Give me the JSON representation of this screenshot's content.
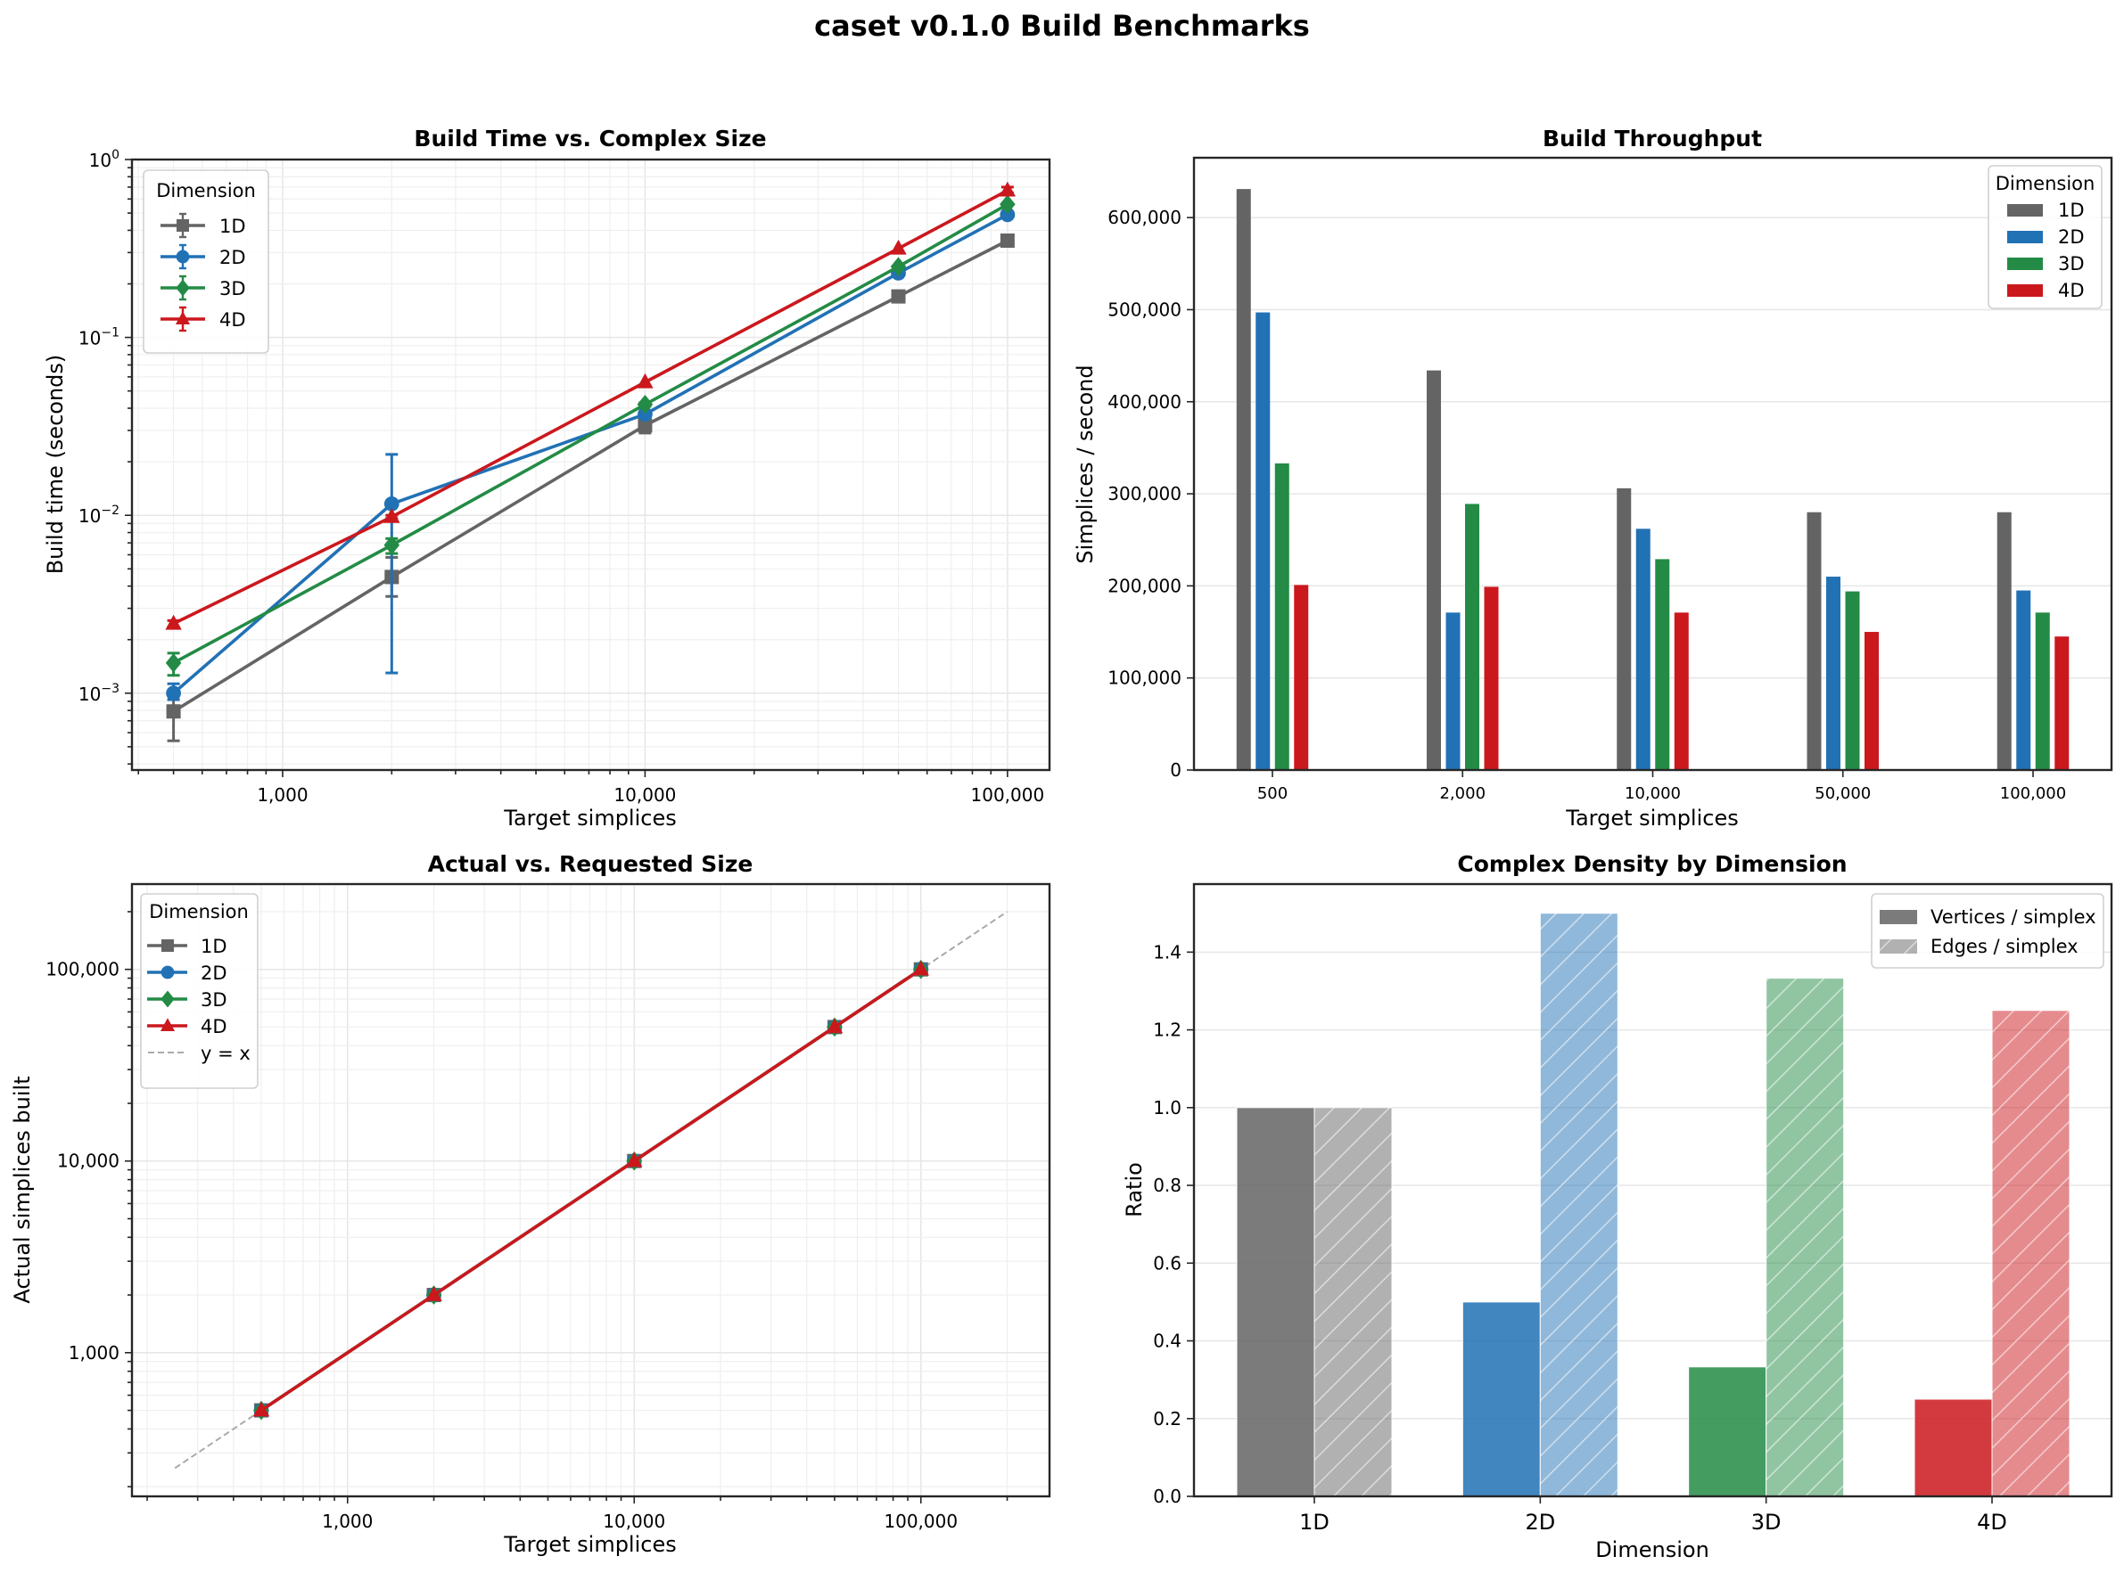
{
  "figure": {
    "title": "caset v0.1.0 Build Benchmarks",
    "colors": {
      "1D": "#646464",
      "2D": "#2171b5",
      "3D": "#238b45",
      "4D": "#cb181d"
    }
  },
  "chart_data": [
    {
      "id": "build-time",
      "type": "line",
      "title": "Build Time vs. Complex Size",
      "xlabel": "Target simplices",
      "ylabel": "Build time (seconds)",
      "xscale": "log",
      "yscale": "log",
      "xlim": [
        384,
        130600
      ],
      "ylim": [
        0.00037,
        1.0
      ],
      "xticks": [
        {
          "value": 1000,
          "label": "1,000"
        },
        {
          "value": 10000,
          "label": "10,000"
        },
        {
          "value": 100000,
          "label": "100,000"
        }
      ],
      "yticks": [
        {
          "value": 0.001,
          "base": "10",
          "exp": "−3"
        },
        {
          "value": 0.01,
          "base": "10",
          "exp": "−2"
        },
        {
          "value": 0.1,
          "base": "10",
          "exp": "−1"
        },
        {
          "value": 1,
          "base": "10",
          "exp": "0"
        }
      ],
      "grid": true,
      "legend": {
        "title": "Dimension",
        "placement": "upper-left"
      },
      "x": [
        500,
        2000,
        10000,
        50000,
        100000
      ],
      "series": [
        {
          "name": "1D",
          "marker": "square",
          "values": [
            0.00079,
            0.0045,
            0.032,
            0.17,
            0.35
          ],
          "err_low": [
            0.00054,
            0.0035,
            0.029,
            0.17,
            0.35
          ],
          "err_high": [
            0.001,
            0.0058,
            0.035,
            0.17,
            0.35
          ]
        },
        {
          "name": "2D",
          "marker": "circle",
          "values": [
            0.001,
            0.0116,
            0.037,
            0.23,
            0.49
          ],
          "err_low": [
            0.00092,
            0.0013,
            0.036,
            0.23,
            0.49
          ],
          "err_high": [
            0.00113,
            0.022,
            0.038,
            0.23,
            0.49
          ]
        },
        {
          "name": "3D",
          "marker": "diamond",
          "values": [
            0.00148,
            0.0068,
            0.042,
            0.25,
            0.56
          ],
          "err_low": [
            0.00126,
            0.0061,
            0.041,
            0.25,
            0.56
          ],
          "err_high": [
            0.00168,
            0.0074,
            0.043,
            0.25,
            0.56
          ]
        },
        {
          "name": "4D",
          "marker": "triangle",
          "values": [
            0.00246,
            0.0098,
            0.056,
            0.316,
            0.67
          ],
          "err_low": [
            0.00236,
            0.0096,
            0.056,
            0.316,
            0.65
          ],
          "err_high": [
            0.00256,
            0.01,
            0.056,
            0.316,
            0.7
          ]
        }
      ]
    },
    {
      "id": "throughput",
      "type": "bar",
      "title": "Build Throughput",
      "xlabel": "Target simplices",
      "ylabel": "Simplices / second",
      "categories": [
        "500",
        "2,000",
        "10,000",
        "50,000",
        "100,000"
      ],
      "ylim": [
        0,
        665000
      ],
      "yticks": [
        {
          "value": 0,
          "label": "0"
        },
        {
          "value": 100000,
          "label": "100,000"
        },
        {
          "value": 200000,
          "label": "200,000"
        },
        {
          "value": 300000,
          "label": "300,000"
        },
        {
          "value": 400000,
          "label": "400,000"
        },
        {
          "value": 500000,
          "label": "500,000"
        },
        {
          "value": 600000,
          "label": "600,000"
        }
      ],
      "grid": "y",
      "legend": {
        "title": "Dimension",
        "placement": "upper-right"
      },
      "series": [
        {
          "name": "1D",
          "values": [
            631000,
            434000,
            306000,
            280000,
            280000
          ]
        },
        {
          "name": "2D",
          "values": [
            497000,
            171000,
            262000,
            210000,
            195000
          ]
        },
        {
          "name": "3D",
          "values": [
            333000,
            289000,
            229000,
            194000,
            171000
          ]
        },
        {
          "name": "4D",
          "values": [
            201000,
            199000,
            171000,
            150000,
            145000
          ]
        }
      ]
    },
    {
      "id": "actual-vs-requested",
      "type": "line",
      "title": "Actual vs. Requested Size",
      "xlabel": "Target simplices",
      "ylabel": "Actual simplices built",
      "xscale": "log",
      "yscale": "log",
      "xlim": [
        177,
        281000
      ],
      "ylim": [
        178,
        278600
      ],
      "xticks": [
        {
          "value": 1000,
          "label": "1,000"
        },
        {
          "value": 10000,
          "label": "10,000"
        },
        {
          "value": 100000,
          "label": "100,000"
        }
      ],
      "yticks": [
        {
          "value": 1000,
          "label": "1,000"
        },
        {
          "value": 10000,
          "label": "10,000"
        },
        {
          "value": 100000,
          "label": "100,000"
        }
      ],
      "grid": true,
      "legend": {
        "title": "Dimension",
        "placement": "upper-left"
      },
      "x": [
        500,
        2000,
        10000,
        50000,
        100000
      ],
      "series": [
        {
          "name": "1D",
          "marker": "square",
          "values": [
            500,
            2000,
            10000,
            50000,
            100000
          ]
        },
        {
          "name": "2D",
          "marker": "circle",
          "values": [
            500,
            2000,
            10000,
            50000,
            100000
          ]
        },
        {
          "name": "3D",
          "marker": "diamond",
          "values": [
            500,
            2000,
            10000,
            50000,
            100000
          ]
        },
        {
          "name": "4D",
          "marker": "triangle",
          "values": [
            500,
            2000,
            10000,
            50000,
            100000
          ]
        }
      ],
      "reference": {
        "name": "y = x",
        "x": [
          250,
          200000
        ],
        "y": [
          250,
          200000
        ],
        "color": "#aaaaaa",
        "style": "dashed"
      }
    },
    {
      "id": "density",
      "type": "bar",
      "title": "Complex Density by Dimension",
      "xlabel": "Dimension",
      "ylabel": "Ratio",
      "categories": [
        "1D",
        "2D",
        "3D",
        "4D"
      ],
      "ylim": [
        0,
        1.575
      ],
      "yticks": [
        {
          "value": 0,
          "label": "0.0"
        },
        {
          "value": 0.2,
          "label": "0.2"
        },
        {
          "value": 0.4,
          "label": "0.4"
        },
        {
          "value": 0.6,
          "label": "0.6"
        },
        {
          "value": 0.8,
          "label": "0.8"
        },
        {
          "value": 1.0,
          "label": "1.0"
        },
        {
          "value": 1.2,
          "label": "1.2"
        },
        {
          "value": 1.4,
          "label": "1.4"
        }
      ],
      "grid": "y",
      "legend": {
        "placement": "upper-right"
      },
      "series": [
        {
          "name": "Vertices / simplex",
          "values": [
            1.0,
            0.5,
            0.333,
            0.25
          ],
          "alpha": 0.85,
          "hatch": false
        },
        {
          "name": "Edges / simplex",
          "values": [
            1.0,
            1.5,
            1.333,
            1.25
          ],
          "alpha": 0.5,
          "hatch": true
        }
      ]
    }
  ]
}
